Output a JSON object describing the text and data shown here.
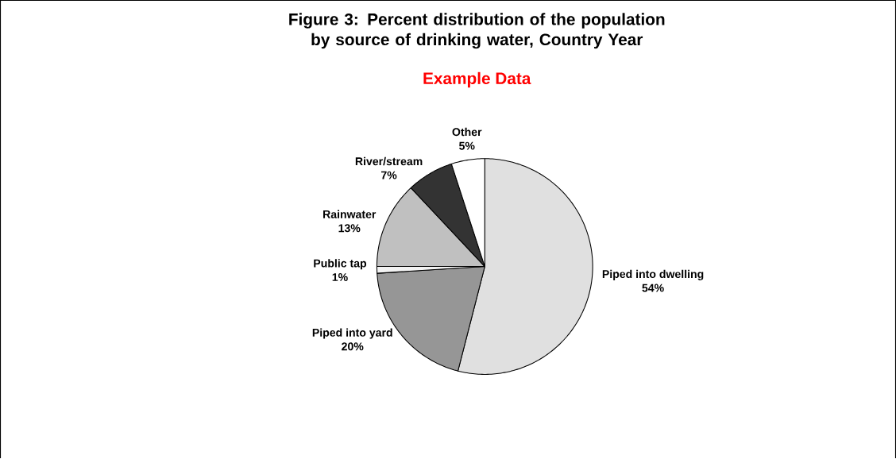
{
  "chart_data": {
    "type": "pie",
    "title": "Figure 3: Percent distribution of the population by source of drinking water, Country Year",
    "subtitle": "Example Data",
    "categories": [
      "Piped into dwelling",
      "Piped into yard",
      "Public tap",
      "Rainwater",
      "River/stream",
      "Other"
    ],
    "values": [
      54,
      20,
      1,
      13,
      7,
      5
    ],
    "value_labels": [
      "54%",
      "20%",
      "1%",
      "13%",
      "7%",
      "5%"
    ],
    "colors": [
      "#e0e0e0",
      "#969696",
      "#f2f2f2",
      "#c0c0c0",
      "#333333",
      "#ffffff"
    ]
  }
}
